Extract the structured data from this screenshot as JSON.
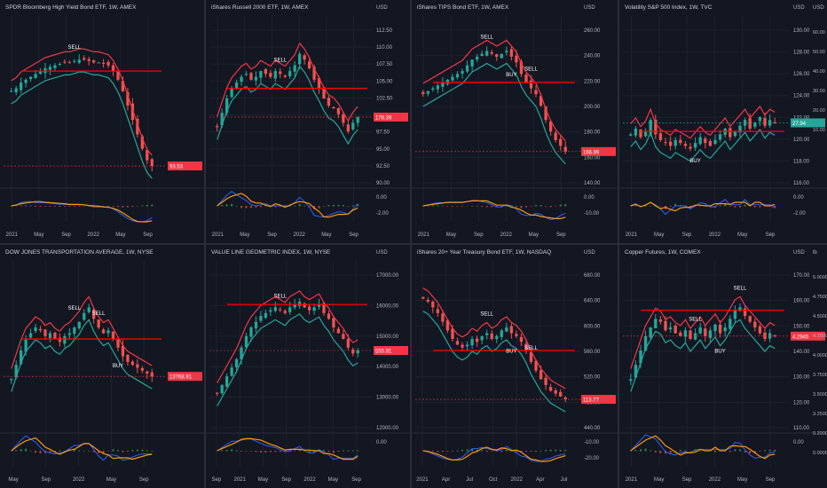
{
  "colors": {
    "background": "#131722",
    "grid": "#1e222d",
    "axis_text": "#b2b5be",
    "candle_up": "#26a69a",
    "candle_down": "#ef5350",
    "stop_up": "#26a69a",
    "stop_down": "#f23645",
    "signal_line": "#ff9800",
    "macd_line": "#2962ff",
    "white_line": "#e0e3eb",
    "sr_red": "#ff0000",
    "sr_white": "#ffffff"
  },
  "panels": [
    {
      "id": "p1",
      "title": "SPDR Bloomberg High Yield Bond ETF, 1W, AMEX",
      "currency": "",
      "price_ticks": [],
      "osc_ticks": [],
      "time_ticks": [
        "2021",
        "May",
        "Sep",
        "2022",
        "May",
        "Sep"
      ],
      "last_price": "93.53",
      "badge_color": "#f23645",
      "labels": [
        {
          "text": "SELL",
          "pos": "mid"
        }
      ],
      "chart_data": {
        "type": "candlestick",
        "trend": "down",
        "shape": [
          0.6,
          0.62,
          0.66,
          0.68,
          0.7,
          0.72,
          0.74,
          0.76,
          0.77,
          0.78,
          0.79,
          0.8,
          0.8,
          0.81,
          0.82,
          0.82,
          0.81,
          0.8,
          0.8,
          0.79,
          0.78,
          0.74,
          0.68,
          0.6,
          0.5,
          0.4,
          0.3,
          0.2,
          0.12,
          0.08
        ]
      }
    },
    {
      "id": "p2",
      "title": "iShares Russell 2000 ETF, 1W, AMEX",
      "currency": "USD",
      "price_ticks": [
        "112.50",
        "110.00",
        "107.50",
        "105.00",
        "102.50",
        "100.00",
        "97.50",
        "95.00",
        "92.50",
        "90.00"
      ],
      "osc_ticks": [
        "0.00",
        "-2.00"
      ],
      "time_ticks": [
        "2021",
        "May",
        "Sep",
        "2022",
        "May",
        "Sep"
      ],
      "last_price": "178.39",
      "badge_color": "#f23645",
      "labels": [
        {
          "text": "SELL",
          "pos": "mid"
        }
      ],
      "chart_data": {
        "type": "candlestick",
        "trend": "down",
        "shape": [
          0.35,
          0.45,
          0.55,
          0.62,
          0.66,
          0.7,
          0.72,
          0.68,
          0.7,
          0.74,
          0.72,
          0.7,
          0.74,
          0.72,
          0.7,
          0.74,
          0.78,
          0.86,
          0.82,
          0.76,
          0.68,
          0.62,
          0.55,
          0.5,
          0.48,
          0.44,
          0.38,
          0.32,
          0.38,
          0.42
        ]
      }
    },
    {
      "id": "p3",
      "title": "iShares TIPS Bond ETF, 1W, AMEX",
      "currency": "USD",
      "price_ticks": [
        "260.00",
        "240.00",
        "220.00",
        "200.00",
        "180.00",
        "160.00",
        "140.00"
      ],
      "osc_ticks": [
        "0.00",
        "-10.00"
      ],
      "time_ticks": [
        "2021",
        "May",
        "Sep",
        "2022",
        "May",
        "Sep"
      ],
      "last_price": "166.99",
      "badge_color": "#f23645",
      "labels": [
        {
          "text": "SELL",
          "pos": "mid"
        },
        {
          "text": "BUY",
          "pos": "low"
        },
        {
          "text": "SELL",
          "pos": "high"
        }
      ],
      "chart_data": {
        "type": "candlestick",
        "trend": "down",
        "shape": [
          0.58,
          0.6,
          0.62,
          0.64,
          0.66,
          0.68,
          0.7,
          0.72,
          0.74,
          0.78,
          0.82,
          0.84,
          0.86,
          0.88,
          0.86,
          0.84,
          0.86,
          0.88,
          0.84,
          0.8,
          0.72,
          0.66,
          0.62,
          0.58,
          0.5,
          0.4,
          0.32,
          0.26,
          0.22,
          0.18
        ]
      }
    },
    {
      "id": "p4",
      "title": "Volatility S&P 500 Index, 1W, TVC",
      "currency": "USD",
      "price_ticks": [
        "130.00",
        "128.00",
        "126.00",
        "124.00",
        "122.00",
        "120.00",
        "118.00",
        "116.00"
      ],
      "osc_ticks": [
        "0.00",
        "-2.00"
      ],
      "time_ticks": [
        "2021",
        "May",
        "Sep",
        "2022",
        "May",
        "Sep"
      ],
      "last_price": "27.94",
      "badge_color": "#26a69a",
      "labels": [
        {
          "text": "BUY",
          "pos": "low"
        }
      ],
      "chart_data": {
        "type": "candlestick",
        "trend": "sideways",
        "shape": [
          0.3,
          0.34,
          0.28,
          0.32,
          0.4,
          0.3,
          0.26,
          0.24,
          0.22,
          0.26,
          0.24,
          0.22,
          0.2,
          0.24,
          0.28,
          0.24,
          0.22,
          0.26,
          0.3,
          0.34,
          0.28,
          0.32,
          0.36,
          0.4,
          0.34,
          0.38,
          0.42,
          0.36,
          0.4,
          0.38
        ]
      }
    },
    {
      "id": "p5",
      "title": "DOW JONES TRANSPORTATION AVERAGE, 1W, NYSE",
      "currency": "",
      "price_ticks": [],
      "osc_ticks": [],
      "time_ticks": [
        "May",
        "Sep",
        "2022",
        "May",
        "Sep"
      ],
      "last_price": "13768.91",
      "badge_color": "#f23645",
      "labels": [
        {
          "text": "SELL",
          "pos": "high"
        },
        {
          "text": "SELL",
          "pos": "mid"
        },
        {
          "text": "BUY",
          "pos": "low"
        }
      ],
      "chart_data": {
        "type": "candlestick",
        "trend": "down",
        "shape": [
          0.3,
          0.4,
          0.5,
          0.58,
          0.62,
          0.66,
          0.64,
          0.6,
          0.62,
          0.58,
          0.56,
          0.6,
          0.62,
          0.66,
          0.7,
          0.76,
          0.8,
          0.72,
          0.66,
          0.62,
          0.64,
          0.58,
          0.52,
          0.46,
          0.42,
          0.4,
          0.38,
          0.36,
          0.34,
          0.32
        ]
      }
    },
    {
      "id": "p6",
      "title": "VALUE LINE GEOMETRIC INDEX, 1W, NYSE",
      "currency": "USD",
      "price_ticks": [
        "17000.00",
        "16000.00",
        "15000.00",
        "14000.00",
        "13000.00",
        "12000.00"
      ],
      "osc_ticks": [
        "0.00"
      ],
      "time_ticks": [
        "Sep",
        "2021",
        "May",
        "Sep",
        "2022",
        "May",
        "Sep"
      ],
      "last_price": "555.91",
      "badge_color": "#f23645",
      "labels": [
        {
          "text": "SELL",
          "pos": "mid"
        }
      ],
      "chart_data": {
        "type": "candlestick",
        "trend": "down",
        "shape": [
          0.2,
          0.26,
          0.32,
          0.38,
          0.44,
          0.52,
          0.6,
          0.66,
          0.7,
          0.74,
          0.76,
          0.78,
          0.8,
          0.78,
          0.76,
          0.8,
          0.82,
          0.84,
          0.8,
          0.78,
          0.8,
          0.82,
          0.76,
          0.72,
          0.66,
          0.62,
          0.58,
          0.52,
          0.48,
          0.5
        ]
      }
    },
    {
      "id": "p7",
      "title": "iShares 20+ Year Treasury Bond ETF, 1W, NASDAQ",
      "currency": "USD",
      "price_ticks": [
        "680.00",
        "640.00",
        "600.00",
        "560.00",
        "520.00",
        "480.00",
        "440.00"
      ],
      "osc_ticks": [
        "-10.00",
        "-20.00"
      ],
      "time_ticks": [
        "2021",
        "Apr",
        "Jul",
        "Oct",
        "2022",
        "Apr",
        "Jul"
      ],
      "last_price": "113.77",
      "badge_color": "#f23645",
      "labels": [
        {
          "text": "SELL",
          "pos": "high"
        },
        {
          "text": "BUY",
          "pos": "low"
        },
        {
          "text": "SELL",
          "pos": "mid"
        }
      ],
      "chart_data": {
        "type": "candlestick",
        "trend": "down",
        "shape": [
          0.86,
          0.84,
          0.8,
          0.76,
          0.7,
          0.64,
          0.58,
          0.54,
          0.52,
          0.54,
          0.58,
          0.56,
          0.6,
          0.62,
          0.58,
          0.6,
          0.64,
          0.66,
          0.62,
          0.6,
          0.56,
          0.5,
          0.42,
          0.36,
          0.3,
          0.26,
          0.22,
          0.2,
          0.18,
          0.16
        ]
      }
    },
    {
      "id": "p8",
      "title": "Copper Futures, 1W, COMEX",
      "currency": "USD",
      "price_ticks": [
        "170.00",
        "160.00",
        "150.00",
        "140.00",
        "130.00",
        "120.00",
        "110.00"
      ],
      "osc_ticks": [
        "0.00"
      ],
      "time_ticks": [
        "2021",
        "May",
        "Sep",
        "2022",
        "May",
        "Sep"
      ],
      "last_price": "4.2945",
      "badge_color": "#f23645",
      "labels": [
        {
          "text": "SELL",
          "pos": "mid"
        },
        {
          "text": "BUY",
          "pos": "low"
        },
        {
          "text": "SELL",
          "pos": "high"
        }
      ],
      "chart_data": {
        "type": "candlestick",
        "trend": "sideways",
        "shape": [
          0.3,
          0.4,
          0.5,
          0.6,
          0.66,
          0.72,
          0.7,
          0.64,
          0.66,
          0.62,
          0.6,
          0.64,
          0.58,
          0.62,
          0.66,
          0.6,
          0.64,
          0.68,
          0.62,
          0.66,
          0.72,
          0.78,
          0.8,
          0.74,
          0.7,
          0.66,
          0.62,
          0.58,
          0.62,
          0.6
        ]
      }
    }
  ],
  "right_scale_p4": {
    "currency": "USD",
    "ticks": [
      "60.00",
      "50.00",
      "40.00",
      "30.00",
      "20.00",
      "10.00"
    ]
  },
  "right_scale_p8": {
    "currency": "lb",
    "ticks": [
      "5.0000",
      "4.7500",
      "4.5000",
      "4.2500",
      "4.0000",
      "3.7500",
      "3.5000",
      "3.2500",
      "0.2000",
      "0.0000"
    ]
  }
}
